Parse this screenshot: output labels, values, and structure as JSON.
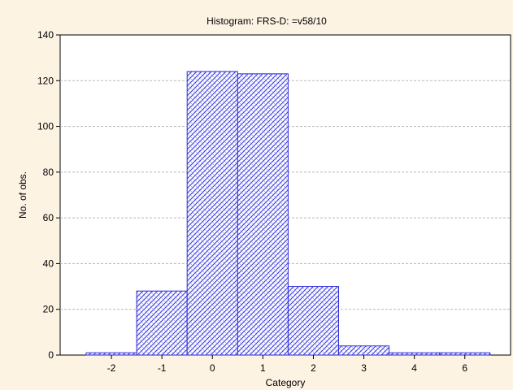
{
  "chart_data": {
    "type": "bar",
    "title": "Histogram: FRS-D: =v58/10",
    "xlabel": "Category",
    "ylabel": "No. of obs.",
    "categories": [
      "-2",
      "-1",
      "0",
      "1",
      "2",
      "3",
      "4",
      "6"
    ],
    "values": [
      1,
      28,
      124,
      123,
      30,
      4,
      1,
      1
    ],
    "ylim": [
      0,
      140
    ],
    "yticks": [
      0,
      20,
      40,
      60,
      80,
      100,
      120,
      140
    ],
    "grid": true,
    "legend": "none",
    "colors": {
      "bar_stroke": "#2b2bd6",
      "bar_pattern": "#3a3ae0",
      "background": "#fdf3e3",
      "plot_background": "#ffffff"
    }
  }
}
